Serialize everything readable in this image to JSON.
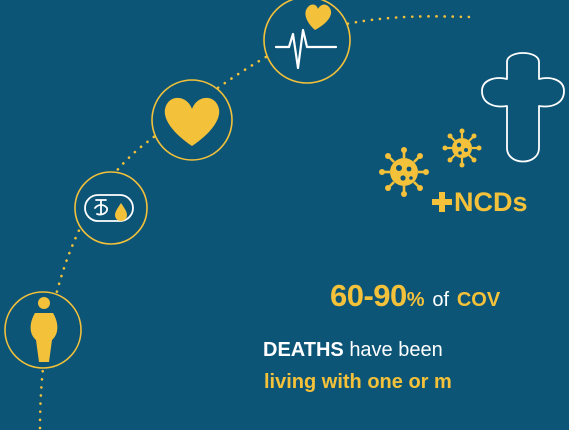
{
  "colors": {
    "background": "#0d5577",
    "accent": "#f3c13a",
    "text": "#ffffff"
  },
  "icons": [
    "heartbeat-icon",
    "heart-icon",
    "diabetes-icon",
    "obesity-icon",
    "cross-icon",
    "virus-icon"
  ],
  "ncd_label": "NCDs",
  "headline": {
    "percent_range": "60-90",
    "percent_sign": "%",
    "of": "of",
    "covid": "COV",
    "deaths": "DEATHS",
    "have_been": "have been",
    "living_with": "living with one or m"
  }
}
